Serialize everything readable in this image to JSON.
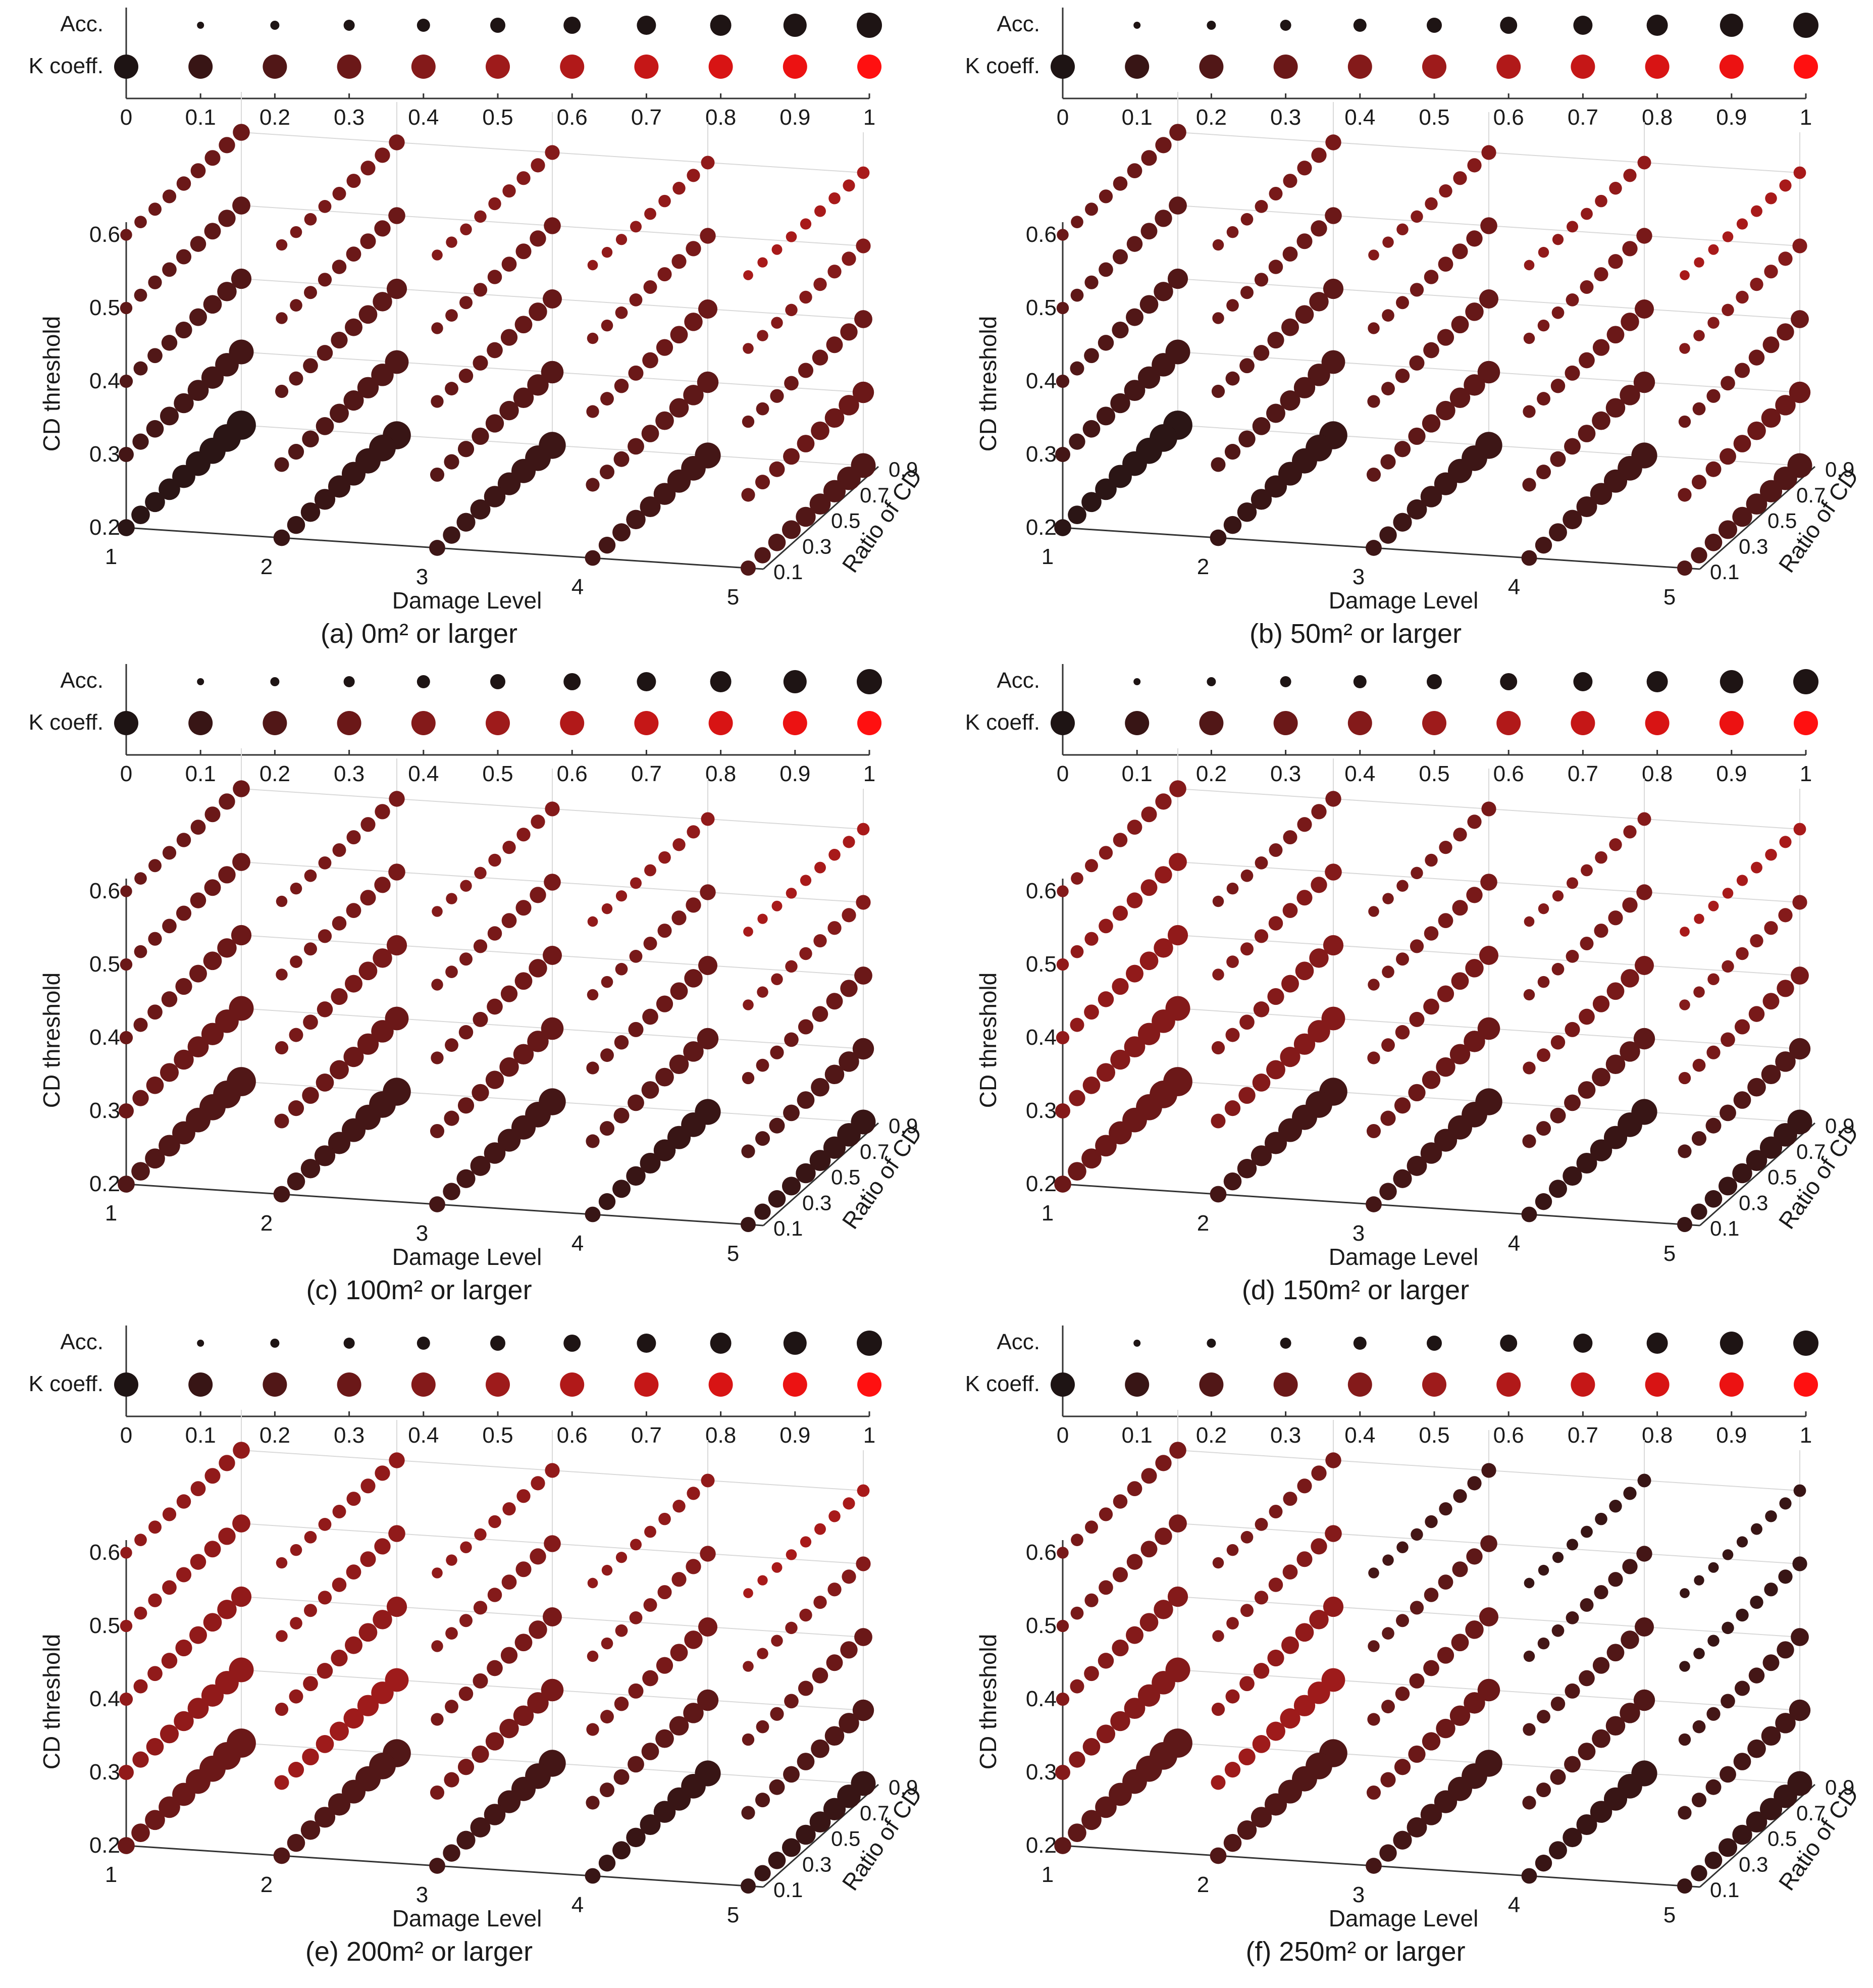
{
  "figure": {
    "colors": {
      "k_low": "#1e1414",
      "k_mid": "#9e1b1b",
      "k_high": "#ff1010",
      "acc": "#1e1414",
      "axis": "#333333",
      "grid": "#d9d9d9"
    }
  },
  "chart_data": [
    {
      "type": "scatter",
      "caption": "(a) 0m² or larger",
      "legend": {
        "acc_label": "Acc.",
        "k_label": "K coeff.",
        "ticks": [
          "0",
          "0.1",
          "0.2",
          "0.3",
          "0.4",
          "0.5",
          "0.6",
          "0.7",
          "0.8",
          "0.9",
          "1"
        ]
      },
      "xlabel": "Damage Level",
      "ylabel": "CD threshold",
      "zlabel": "Ratio of CD",
      "x_ticks": [
        "1",
        "2",
        "3",
        "4",
        "5"
      ],
      "y_ticks": [
        "0.2",
        "0.3",
        "0.4",
        "0.5",
        "0.6"
      ],
      "z_ticks": [
        "0.1",
        "0.3",
        "0.5",
        "0.7",
        "0.9"
      ],
      "x": [
        1,
        2,
        3,
        4,
        5
      ],
      "cd_threshold": [
        0.2,
        0.3,
        0.4,
        0.5,
        0.6
      ],
      "ratio_of_cd": [
        0.1,
        0.2,
        0.3,
        0.4,
        0.5,
        0.6,
        0.7,
        0.8,
        0.9
      ],
      "k_by_cell": [
        [
          0.05,
          0.1,
          0.12,
          0.15,
          0.2
        ],
        [
          0.15,
          0.2,
          0.22,
          0.25,
          0.3
        ],
        [
          0.2,
          0.25,
          0.28,
          0.3,
          0.3
        ],
        [
          0.25,
          0.3,
          0.32,
          0.35,
          0.4
        ],
        [
          0.3,
          0.35,
          0.4,
          0.45,
          0.55
        ]
      ],
      "acc_by_cell": [
        [
          0.95,
          0.9,
          0.85,
          0.8,
          0.75
        ],
        [
          0.75,
          0.7,
          0.65,
          0.6,
          0.6
        ],
        [
          0.55,
          0.55,
          0.5,
          0.5,
          0.45
        ],
        [
          0.45,
          0.4,
          0.4,
          0.35,
          0.3
        ],
        [
          0.4,
          0.35,
          0.3,
          0.25,
          0.2
        ]
      ]
    },
    {
      "type": "scatter",
      "caption": "(b) 50m² or larger",
      "legend": {
        "acc_label": "Acc.",
        "k_label": "K coeff.",
        "ticks": [
          "0",
          "0.1",
          "0.2",
          "0.3",
          "0.4",
          "0.5",
          "0.6",
          "0.7",
          "0.8",
          "0.9",
          "1"
        ]
      },
      "xlabel": "Damage Level",
      "ylabel": "CD threshold",
      "zlabel": "Ratio of CD",
      "x_ticks": [
        "1",
        "2",
        "3",
        "4",
        "5"
      ],
      "y_ticks": [
        "0.2",
        "0.3",
        "0.4",
        "0.5",
        "0.6"
      ],
      "z_ticks": [
        "0.1",
        "0.3",
        "0.5",
        "0.7",
        "0.9"
      ],
      "x": [
        1,
        2,
        3,
        4,
        5
      ],
      "cd_threshold": [
        0.2,
        0.3,
        0.4,
        0.5,
        0.6
      ],
      "ratio_of_cd": [
        0.1,
        0.2,
        0.3,
        0.4,
        0.5,
        0.6,
        0.7,
        0.8,
        0.9
      ],
      "k_by_cell": [
        [
          0.05,
          0.1,
          0.12,
          0.15,
          0.2
        ],
        [
          0.15,
          0.2,
          0.25,
          0.25,
          0.3
        ],
        [
          0.2,
          0.25,
          0.28,
          0.3,
          0.3
        ],
        [
          0.25,
          0.3,
          0.32,
          0.35,
          0.4
        ],
        [
          0.3,
          0.35,
          0.4,
          0.45,
          0.55
        ]
      ],
      "acc_by_cell": [
        [
          0.95,
          0.9,
          0.85,
          0.8,
          0.75
        ],
        [
          0.75,
          0.7,
          0.65,
          0.6,
          0.6
        ],
        [
          0.55,
          0.55,
          0.5,
          0.5,
          0.45
        ],
        [
          0.45,
          0.4,
          0.4,
          0.35,
          0.3
        ],
        [
          0.4,
          0.35,
          0.3,
          0.25,
          0.2
        ]
      ]
    },
    {
      "type": "scatter",
      "caption": "(c) 100m² or larger",
      "legend": {
        "acc_label": "Acc.",
        "k_label": "K coeff.",
        "ticks": [
          "0",
          "0.1",
          "0.2",
          "0.3",
          "0.4",
          "0.5",
          "0.6",
          "0.7",
          "0.8",
          "0.9",
          "1"
        ]
      },
      "xlabel": "Damage Level",
      "ylabel": "CD threshold",
      "zlabel": "Ratio of CD",
      "x_ticks": [
        "1",
        "2",
        "3",
        "4",
        "5"
      ],
      "y_ticks": [
        "0.2",
        "0.3",
        "0.4",
        "0.5",
        "0.6"
      ],
      "z_ticks": [
        "0.1",
        "0.3",
        "0.5",
        "0.7",
        "0.9"
      ],
      "x": [
        1,
        2,
        3,
        4,
        5
      ],
      "cd_threshold": [
        0.2,
        0.3,
        0.4,
        0.5,
        0.6
      ],
      "ratio_of_cd": [
        0.1,
        0.2,
        0.3,
        0.4,
        0.5,
        0.6,
        0.7,
        0.8,
        0.9
      ],
      "k_by_cell": [
        [
          0.2,
          0.15,
          0.15,
          0.1,
          0.1
        ],
        [
          0.3,
          0.3,
          0.28,
          0.25,
          0.2
        ],
        [
          0.3,
          0.35,
          0.32,
          0.3,
          0.3
        ],
        [
          0.3,
          0.35,
          0.35,
          0.35,
          0.4
        ],
        [
          0.3,
          0.35,
          0.4,
          0.45,
          0.55
        ]
      ],
      "acc_by_cell": [
        [
          0.95,
          0.9,
          0.85,
          0.8,
          0.75
        ],
        [
          0.75,
          0.7,
          0.65,
          0.6,
          0.6
        ],
        [
          0.55,
          0.55,
          0.5,
          0.5,
          0.45
        ],
        [
          0.45,
          0.4,
          0.4,
          0.35,
          0.3
        ],
        [
          0.4,
          0.35,
          0.3,
          0.25,
          0.2
        ]
      ]
    },
    {
      "type": "scatter",
      "caption": "(d) 150m² or larger",
      "legend": {
        "acc_label": "Acc.",
        "k_label": "K coeff.",
        "ticks": [
          "0",
          "0.1",
          "0.2",
          "0.3",
          "0.4",
          "0.5",
          "0.6",
          "0.7",
          "0.8",
          "0.9",
          "1"
        ]
      },
      "xlabel": "Damage Level",
      "ylabel": "CD threshold",
      "zlabel": "Ratio of CD",
      "x_ticks": [
        "1",
        "2",
        "3",
        "4",
        "5"
      ],
      "y_ticks": [
        "0.2",
        "0.3",
        "0.4",
        "0.5",
        "0.6"
      ],
      "z_ticks": [
        "0.1",
        "0.3",
        "0.5",
        "0.7",
        "0.9"
      ],
      "x": [
        1,
        2,
        3,
        4,
        5
      ],
      "cd_threshold": [
        0.2,
        0.3,
        0.4,
        0.5,
        0.6
      ],
      "ratio_of_cd": [
        0.1,
        0.2,
        0.3,
        0.4,
        0.5,
        0.6,
        0.7,
        0.8,
        0.9
      ],
      "k_by_cell": [
        [
          0.3,
          0.15,
          0.15,
          0.1,
          0.1
        ],
        [
          0.4,
          0.4,
          0.3,
          0.25,
          0.2
        ],
        [
          0.45,
          0.4,
          0.35,
          0.35,
          0.35
        ],
        [
          0.45,
          0.4,
          0.35,
          0.35,
          0.4
        ],
        [
          0.4,
          0.35,
          0.35,
          0.4,
          0.55
        ]
      ],
      "acc_by_cell": [
        [
          0.95,
          0.9,
          0.85,
          0.8,
          0.75
        ],
        [
          0.75,
          0.7,
          0.65,
          0.6,
          0.6
        ],
        [
          0.55,
          0.55,
          0.5,
          0.5,
          0.45
        ],
        [
          0.45,
          0.4,
          0.4,
          0.35,
          0.3
        ],
        [
          0.4,
          0.35,
          0.3,
          0.25,
          0.2
        ]
      ]
    },
    {
      "type": "scatter",
      "caption": "(e) 200m² or larger",
      "legend": {
        "acc_label": "Acc.",
        "k_label": "K coeff.",
        "ticks": [
          "0",
          "0.1",
          "0.2",
          "0.3",
          "0.4",
          "0.5",
          "0.6",
          "0.7",
          "0.8",
          "0.9",
          "1"
        ]
      },
      "xlabel": "Damage Level",
      "ylabel": "CD threshold",
      "zlabel": "Ratio of CD",
      "x_ticks": [
        "1",
        "2",
        "3",
        "4",
        "5"
      ],
      "y_ticks": [
        "0.2",
        "0.3",
        "0.4",
        "0.5",
        "0.6"
      ],
      "z_ticks": [
        "0.1",
        "0.3",
        "0.5",
        "0.7",
        "0.9"
      ],
      "x": [
        1,
        2,
        3,
        4,
        5
      ],
      "cd_threshold": [
        0.2,
        0.3,
        0.4,
        0.5,
        0.6
      ],
      "ratio_of_cd": [
        0.1,
        0.2,
        0.3,
        0.4,
        0.5,
        0.6,
        0.7,
        0.8,
        0.9
      ],
      "k_by_cell": [
        [
          0.3,
          0.2,
          0.15,
          0.1,
          0.1
        ],
        [
          0.45,
          0.5,
          0.35,
          0.25,
          0.2
        ],
        [
          0.45,
          0.45,
          0.35,
          0.35,
          0.3
        ],
        [
          0.45,
          0.45,
          0.4,
          0.4,
          0.4
        ],
        [
          0.45,
          0.45,
          0.45,
          0.45,
          0.55
        ]
      ],
      "acc_by_cell": [
        [
          0.95,
          0.9,
          0.85,
          0.8,
          0.75
        ],
        [
          0.75,
          0.7,
          0.65,
          0.6,
          0.6
        ],
        [
          0.55,
          0.55,
          0.5,
          0.5,
          0.45
        ],
        [
          0.45,
          0.4,
          0.4,
          0.35,
          0.3
        ],
        [
          0.4,
          0.35,
          0.3,
          0.25,
          0.2
        ]
      ]
    },
    {
      "type": "scatter",
      "caption": "(f) 250m² or larger",
      "legend": {
        "acc_label": "Acc.",
        "k_label": "K coeff.",
        "ticks": [
          "0",
          "0.1",
          "0.2",
          "0.3",
          "0.4",
          "0.5",
          "0.6",
          "0.7",
          "0.8",
          "0.9",
          "1"
        ]
      },
      "xlabel": "Damage Level",
      "ylabel": "CD threshold",
      "zlabel": "Ratio of CD",
      "x_ticks": [
        "1",
        "2",
        "3",
        "4",
        "5"
      ],
      "y_ticks": [
        "0.2",
        "0.3",
        "0.4",
        "0.5",
        "0.6"
      ],
      "z_ticks": [
        "0.1",
        "0.3",
        "0.5",
        "0.7",
        "0.9"
      ],
      "x": [
        1,
        2,
        3,
        4,
        5
      ],
      "cd_threshold": [
        0.2,
        0.3,
        0.4,
        0.5,
        0.6
      ],
      "ratio_of_cd": [
        0.1,
        0.2,
        0.3,
        0.4,
        0.5,
        0.6,
        0.7,
        0.8,
        0.9
      ],
      "k_by_cell": [
        [
          0.25,
          0.2,
          0.15,
          0.1,
          0.1
        ],
        [
          0.4,
          0.5,
          0.3,
          0.2,
          0.15
        ],
        [
          0.4,
          0.45,
          0.3,
          0.2,
          0.15
        ],
        [
          0.35,
          0.4,
          0.25,
          0.15,
          0.1
        ],
        [
          0.35,
          0.35,
          0.15,
          0.1,
          0.1
        ]
      ],
      "acc_by_cell": [
        [
          0.95,
          0.9,
          0.85,
          0.8,
          0.75
        ],
        [
          0.75,
          0.7,
          0.65,
          0.6,
          0.6
        ],
        [
          0.55,
          0.55,
          0.5,
          0.5,
          0.45
        ],
        [
          0.45,
          0.4,
          0.4,
          0.35,
          0.3
        ],
        [
          0.4,
          0.35,
          0.3,
          0.25,
          0.2
        ]
      ]
    }
  ]
}
